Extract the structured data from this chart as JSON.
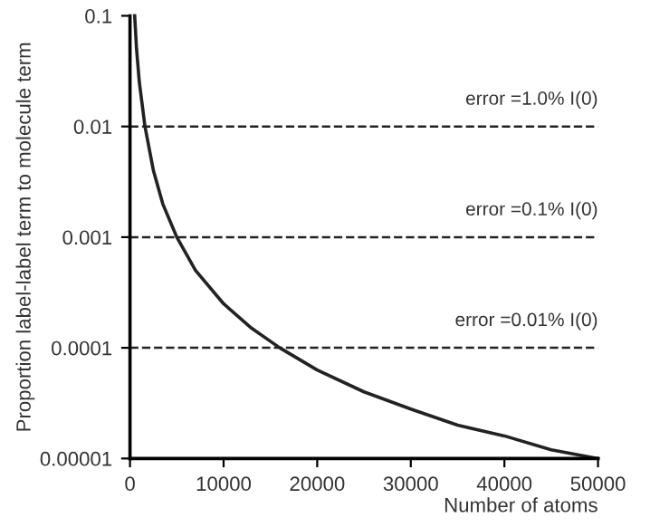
{
  "chart_data": {
    "type": "line",
    "xlabel": "Number of atoms",
    "ylabel": "Proportion label-label term to molecule term",
    "x": [
      500,
      700,
      1000,
      1600,
      2500,
      3500,
      5000,
      7000,
      10000,
      13000,
      16000,
      20000,
      25000,
      30000,
      35000,
      40000,
      45000,
      50000
    ],
    "series": [
      {
        "color": "#222222",
        "values": [
          0.1,
          0.05,
          0.025,
          0.01,
          0.004,
          0.002,
          0.001,
          0.0005,
          0.00025,
          0.00015,
          0.0001,
          6.3e-05,
          4e-05,
          2.8e-05,
          2e-05,
          1.6e-05,
          1.2e-05,
          1e-05
        ]
      }
    ],
    "log": "y",
    "xlim": [
      0,
      50000
    ],
    "ylim": [
      1e-05,
      0.1
    ],
    "xticks": [
      0,
      10000,
      20000,
      30000,
      40000,
      50000
    ],
    "yticks": [
      {
        "value": 1e-05,
        "label": "0.00001"
      },
      {
        "value": 0.0001,
        "label": "0.0001"
      },
      {
        "value": 0.001,
        "label": "0.001"
      },
      {
        "value": 0.01,
        "label": "0.01"
      },
      {
        "value": 0.1,
        "label": "0.1"
      }
    ],
    "ref_lines": [
      {
        "axis": "y",
        "value": 0.01,
        "label": "error =1.0% I(0)",
        "color": "#222222",
        "line_style": "dashed"
      },
      {
        "axis": "y",
        "value": 0.001,
        "label": "error =0.1% I(0)",
        "color": "#222222",
        "line_style": "dashed"
      },
      {
        "axis": "y",
        "value": 0.0001,
        "label": "error =0.01% I(0)",
        "color": "#222222",
        "line_style": "dashed"
      }
    ],
    "grid": false,
    "legend": false,
    "marker": "none",
    "line_style": "solid"
  }
}
